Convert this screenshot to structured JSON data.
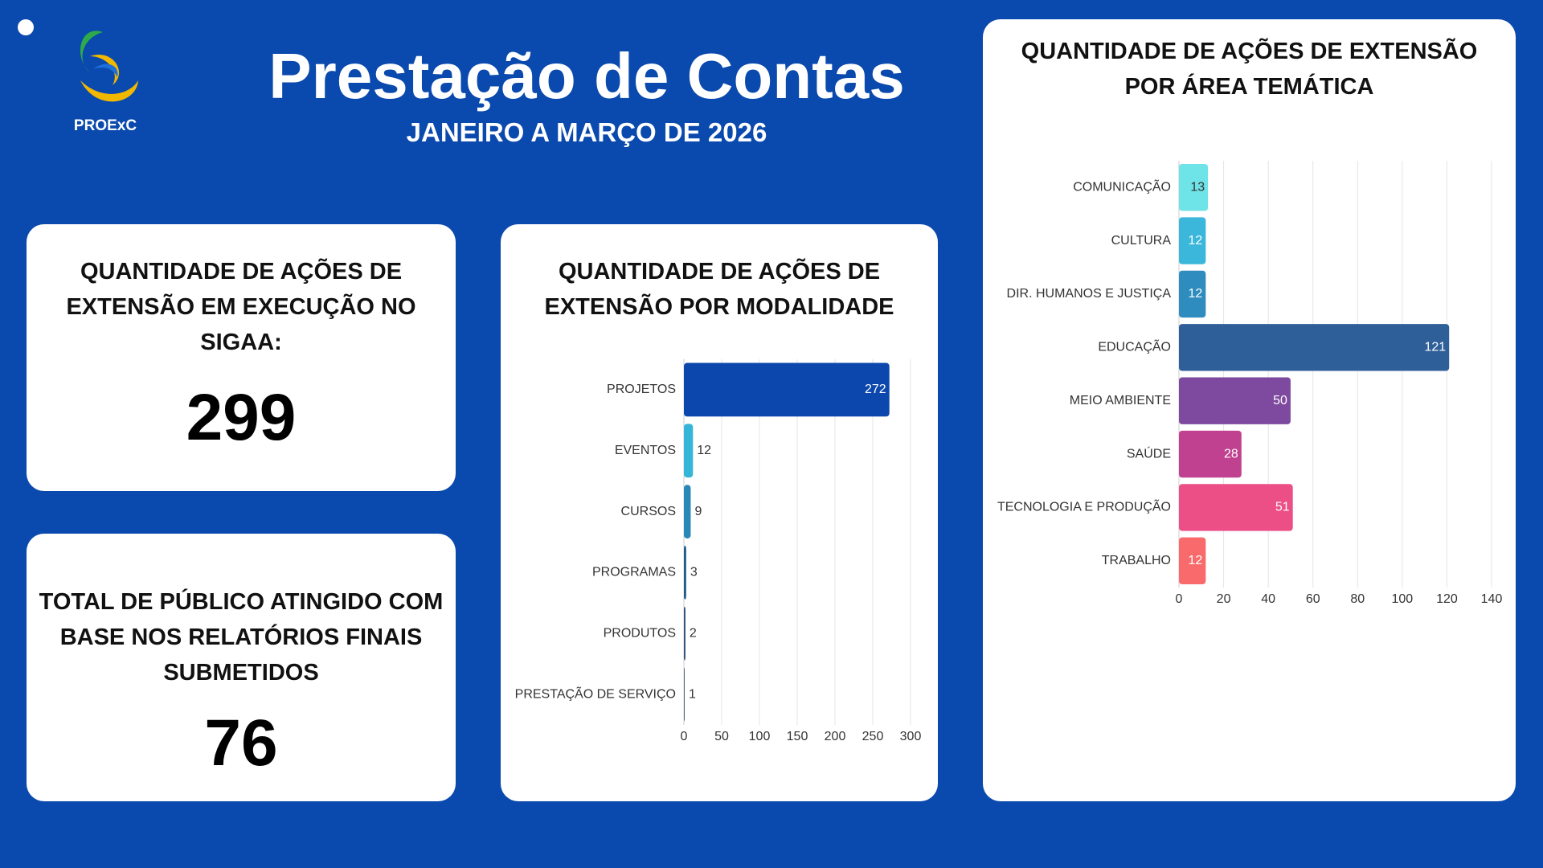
{
  "header": {
    "logo_text": "PROExC",
    "title": "Prestação de Contas",
    "subtitle": "JANEIRO A MARÇO DE 2026"
  },
  "cards": [
    {
      "title": "QUANTIDADE DE AÇÕES DE EXTENSÃO EM EXECUÇÃO NO SIGAA:",
      "value": 299
    },
    {
      "title": "TOTAL DE PÚBLICO ATINGIDO COM BASE NOS RELATÓRIOS FINAIS SUBMETIDOS",
      "value": 76
    }
  ],
  "chart_data": [
    {
      "type": "bar",
      "orientation": "horizontal",
      "title": "QUANTIDADE DE AÇÕES DE EXTENSÃO POR MODALIDADE",
      "categories": [
        "PROJETOS",
        "EVENTOS",
        "CURSOS",
        "PROGRAMAS",
        "PRODUTOS",
        "PRESTAÇÃO DE SERVIÇO"
      ],
      "values": [
        272,
        12,
        9,
        3,
        2,
        1
      ],
      "colors": [
        "#0b47ad",
        "#35b6d8",
        "#2a88b8",
        "#1b5d85",
        "#2e4d7c",
        "#4a5a78"
      ],
      "xlim": [
        0,
        300
      ],
      "xticks": [
        0,
        50,
        100,
        150,
        200,
        250,
        300
      ],
      "grid": true
    },
    {
      "type": "bar",
      "orientation": "horizontal",
      "title": "QUANTIDADE DE AÇÕES DE EXTENSÃO POR ÁREA TEMÁTICA",
      "categories": [
        "COMUNICAÇÃO",
        "CULTURA",
        "DIR. HUMANOS E JUSTIÇA",
        "EDUCAÇÃO",
        "MEIO AMBIENTE",
        "SAÚDE",
        "TECNOLOGIA E PRODUÇÃO",
        "TRABALHO"
      ],
      "values": [
        13,
        12,
        12,
        121,
        50,
        28,
        51,
        12
      ],
      "colors": [
        "#6ee3e8",
        "#3ab7da",
        "#2f8cbe",
        "#2f5f99",
        "#7e4a9f",
        "#c0418f",
        "#ec4f86",
        "#f86a6c"
      ],
      "xlim": [
        0,
        140
      ],
      "xticks": [
        0,
        20,
        40,
        60,
        80,
        100,
        120,
        140
      ],
      "grid": true
    }
  ]
}
